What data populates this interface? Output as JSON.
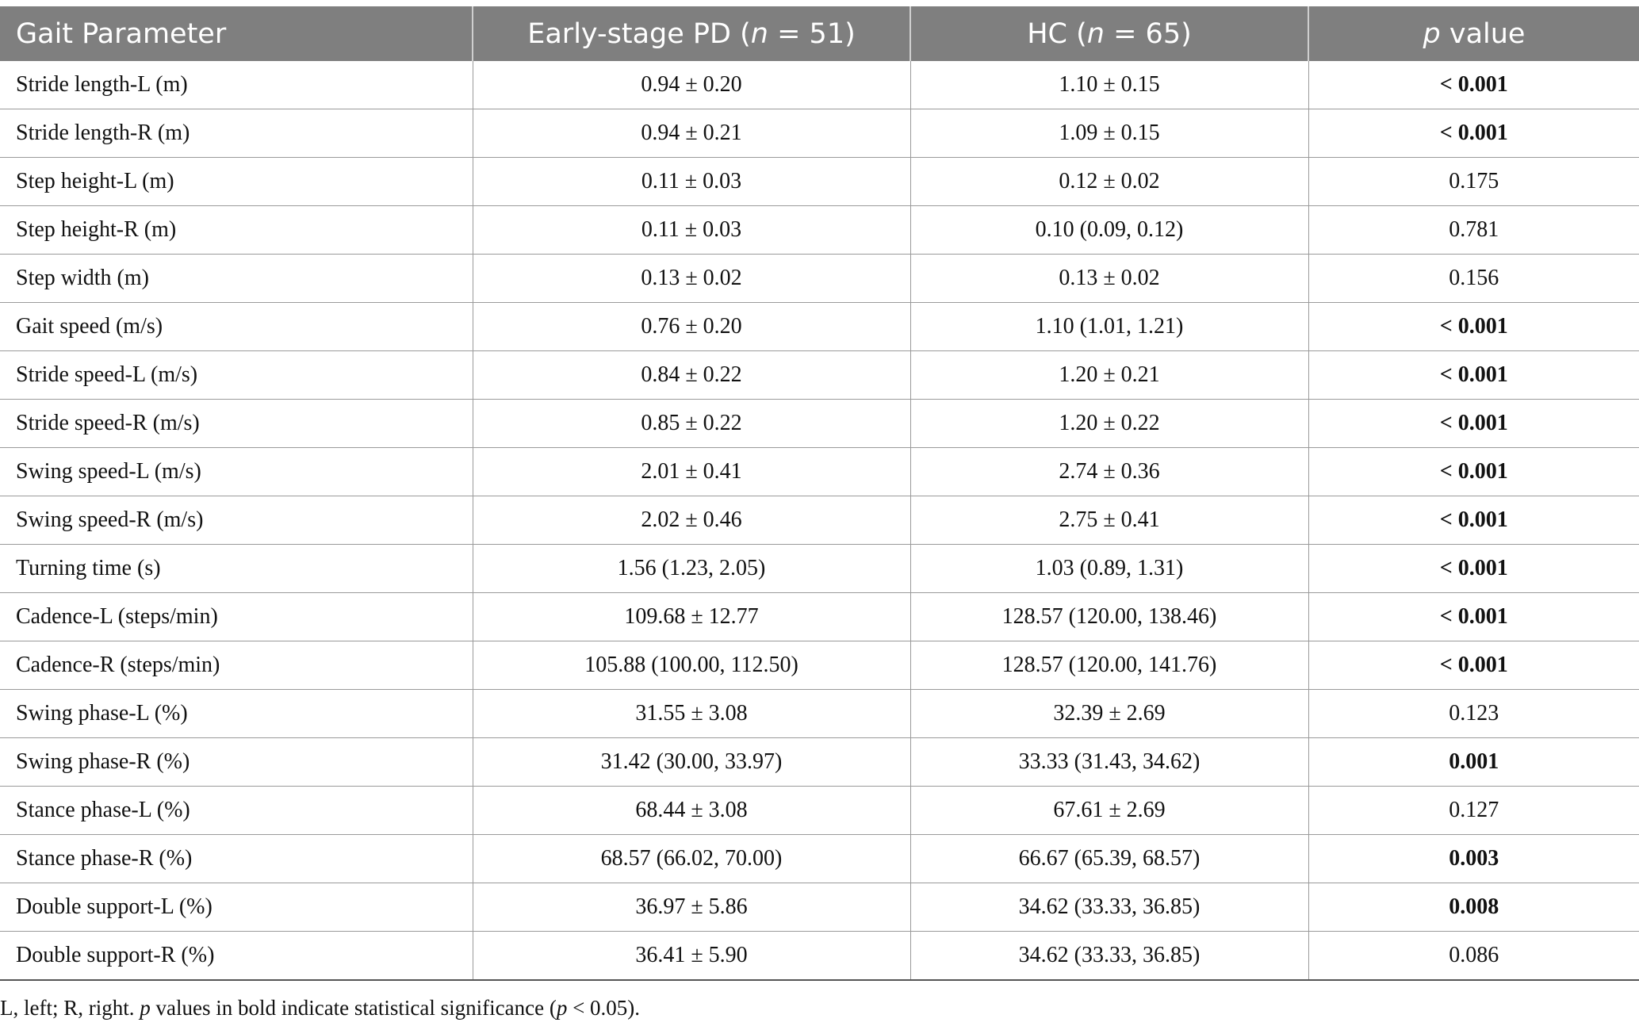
{
  "table": {
    "headers": {
      "parameter": "Gait Parameter",
      "pd_prefix": "Early-stage PD (",
      "pd_n": "n",
      "pd_suffix": " = 51)",
      "hc_prefix": "HC (",
      "hc_n": "n",
      "hc_suffix": " = 65)",
      "p_italic": "p",
      "p_suffix": " value"
    },
    "rows": [
      {
        "parameter": "Stride length-L (m)",
        "pd": "0.94 ± 0.20",
        "hc": "1.10 ± 0.15",
        "p": "< 0.001",
        "significant": true
      },
      {
        "parameter": "Stride length-R (m)",
        "pd": "0.94 ± 0.21",
        "hc": "1.09 ± 0.15",
        "p": "< 0.001",
        "significant": true
      },
      {
        "parameter": "Step height-L (m)",
        "pd": "0.11 ± 0.03",
        "hc": "0.12 ± 0.02",
        "p": "0.175",
        "significant": false
      },
      {
        "parameter": "Step height-R (m)",
        "pd": "0.11 ± 0.03",
        "hc": "0.10 (0.09, 0.12)",
        "p": "0.781",
        "significant": false
      },
      {
        "parameter": "Step width (m)",
        "pd": "0.13 ± 0.02",
        "hc": "0.13 ± 0.02",
        "p": "0.156",
        "significant": false
      },
      {
        "parameter": "Gait speed (m/s)",
        "pd": "0.76 ± 0.20",
        "hc": "1.10 (1.01, 1.21)",
        "p": "< 0.001",
        "significant": true
      },
      {
        "parameter": "Stride speed-L (m/s)",
        "pd": "0.84 ± 0.22",
        "hc": "1.20 ± 0.21",
        "p": "< 0.001",
        "significant": true
      },
      {
        "parameter": "Stride speed-R (m/s)",
        "pd": "0.85 ± 0.22",
        "hc": "1.20 ± 0.22",
        "p": "< 0.001",
        "significant": true
      },
      {
        "parameter": "Swing speed-L (m/s)",
        "pd": "2.01 ± 0.41",
        "hc": "2.74 ± 0.36",
        "p": "< 0.001",
        "significant": true
      },
      {
        "parameter": "Swing speed-R (m/s)",
        "pd": "2.02 ± 0.46",
        "hc": "2.75 ± 0.41",
        "p": "< 0.001",
        "significant": true
      },
      {
        "parameter": "Turning time (s)",
        "pd": "1.56 (1.23, 2.05)",
        "hc": "1.03 (0.89, 1.31)",
        "p": "< 0.001",
        "significant": true
      },
      {
        "parameter": "Cadence-L (steps/min)",
        "pd": "109.68 ± 12.77",
        "hc": "128.57 (120.00, 138.46)",
        "p": "< 0.001",
        "significant": true
      },
      {
        "parameter": "Cadence-R (steps/min)",
        "pd": "105.88 (100.00, 112.50)",
        "hc": "128.57 (120.00, 141.76)",
        "p": "< 0.001",
        "significant": true
      },
      {
        "parameter": "Swing phase-L (%)",
        "pd": "31.55 ± 3.08",
        "hc": "32.39 ± 2.69",
        "p": "0.123",
        "significant": false
      },
      {
        "parameter": "Swing phase-R (%)",
        "pd": "31.42 (30.00, 33.97)",
        "hc": "33.33 (31.43, 34.62)",
        "p": "0.001",
        "significant": true
      },
      {
        "parameter": "Stance phase-L (%)",
        "pd": "68.44 ± 3.08",
        "hc": "67.61 ± 2.69",
        "p": "0.127",
        "significant": false
      },
      {
        "parameter": "Stance phase-R (%)",
        "pd": "68.57 (66.02, 70.00)",
        "hc": "66.67 (65.39, 68.57)",
        "p": "0.003",
        "significant": true
      },
      {
        "parameter": "Double support-L (%)",
        "pd": "36.97 ± 5.86",
        "hc": "34.62 (33.33, 36.85)",
        "p": "0.008",
        "significant": true
      },
      {
        "parameter": "Double support-R (%)",
        "pd": "36.41 ± 5.90",
        "hc": "34.62 (33.33, 36.85)",
        "p": "0.086",
        "significant": false
      }
    ]
  },
  "footnote": {
    "part1": "L, left; R, right. ",
    "p1": "p",
    "part2": " values in bold indicate statistical significance (",
    "p2": "p",
    "part3": " < 0.05)."
  }
}
